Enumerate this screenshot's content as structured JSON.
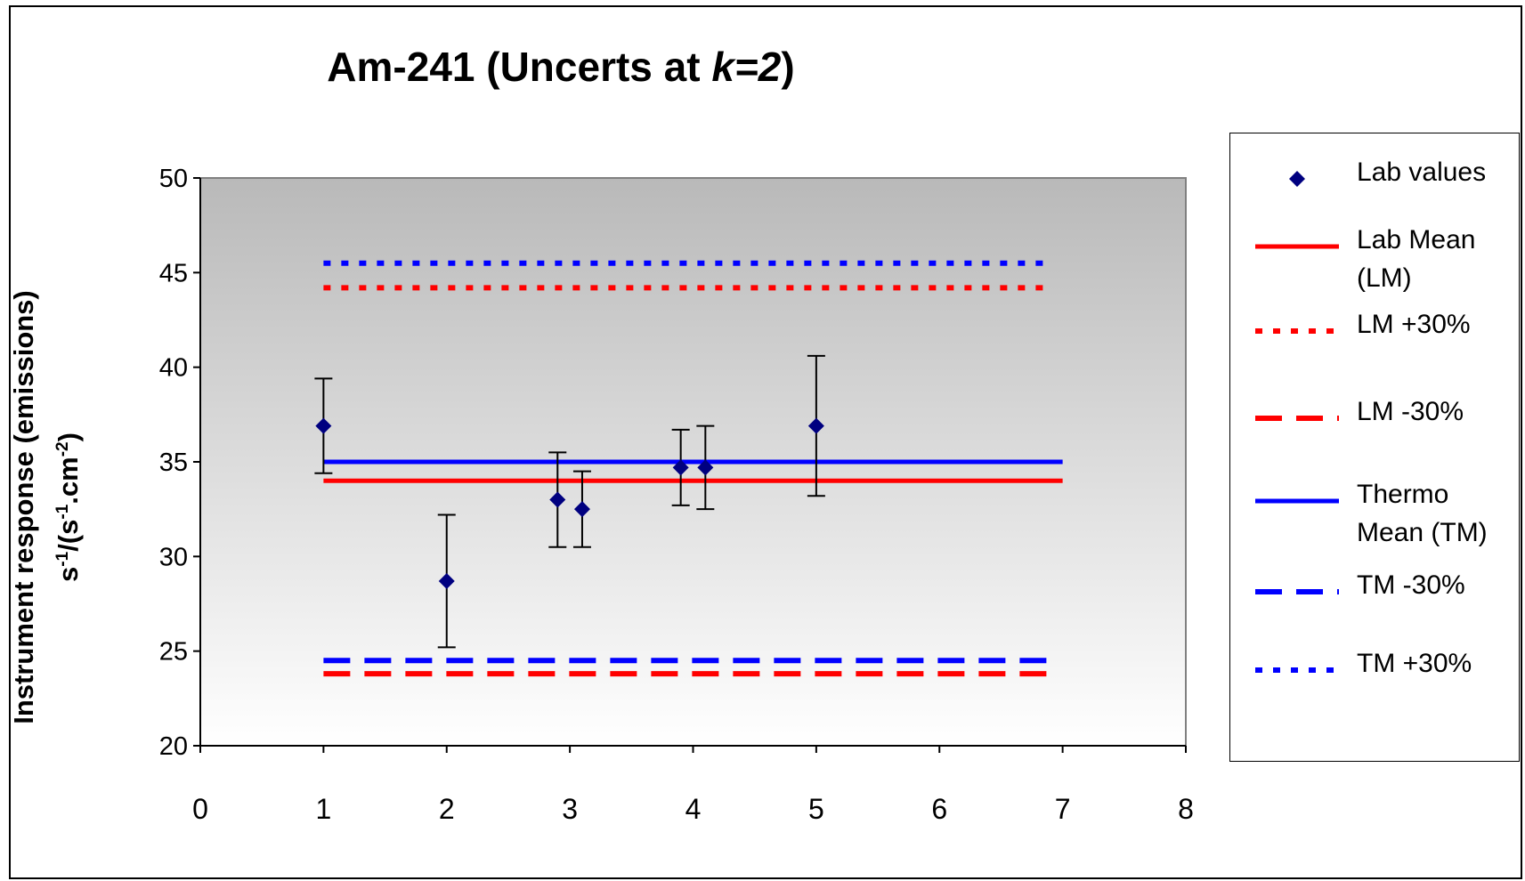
{
  "chart_data": {
    "type": "scatter",
    "title": "Am-241   (Uncerts at k=2)",
    "title_parts": {
      "main": "Am-241   (Uncerts at ",
      "italic": "k=2",
      "close": ")"
    },
    "ylabel_line1": "Instrument response (emissions)",
    "ylabel_line2": {
      "s1": "s",
      "e1": "-1",
      "mid": "/(s",
      "e2": "-1",
      "dot": ".cm",
      "e3": "-2",
      "end": ")"
    },
    "xlabel": "",
    "xlim": [
      0,
      8
    ],
    "ylim": [
      20,
      50
    ],
    "xticks": [
      "0",
      "1",
      "2",
      "3",
      "4",
      "5",
      "6",
      "7",
      "8"
    ],
    "yticks": [
      "20",
      "25",
      "30",
      "35",
      "40",
      "45",
      "50"
    ],
    "grid": false,
    "legend_position": "right",
    "plot_background": "gradient grey (dark top to white bottom)",
    "series": [
      {
        "name": "Lab values",
        "kind": "points",
        "color": "#000080",
        "marker": "diamond",
        "points": [
          {
            "x": 1.0,
            "y": 36.9,
            "err": 2.5
          },
          {
            "x": 2.0,
            "y": 28.7,
            "err": 3.5
          },
          {
            "x": 2.9,
            "y": 33.0,
            "err": 2.5
          },
          {
            "x": 3.1,
            "y": 32.5,
            "err": 2.0
          },
          {
            "x": 3.9,
            "y": 34.7,
            "err": 2.0
          },
          {
            "x": 4.1,
            "y": 34.7,
            "err": 2.2
          },
          {
            "x": 5.0,
            "y": 36.9,
            "err": 3.7
          }
        ]
      },
      {
        "name": "Lab Mean (LM)",
        "kind": "line",
        "style": "solid",
        "color": "#ff0000",
        "x": [
          1,
          7
        ],
        "y": 34.0
      },
      {
        "name": "LM +30%",
        "kind": "line",
        "style": "dotted",
        "color": "#ff0000",
        "x": [
          1,
          7
        ],
        "y": 44.2
      },
      {
        "name": "LM -30%",
        "kind": "line",
        "style": "dashed",
        "color": "#ff0000",
        "x": [
          1,
          7
        ],
        "y": 23.8
      },
      {
        "name": "Thermo Mean (TM)",
        "kind": "line",
        "style": "solid",
        "color": "#0000ff",
        "x": [
          1,
          7
        ],
        "y": 35.0
      },
      {
        "name": "TM -30%",
        "kind": "line",
        "style": "dashed",
        "color": "#0000ff",
        "x": [
          1,
          7
        ],
        "y": 24.5
      },
      {
        "name": "TM +30%",
        "kind": "line",
        "style": "dotted",
        "color": "#0000ff",
        "x": [
          1,
          7
        ],
        "y": 45.5
      }
    ]
  },
  "legend": {
    "items": [
      {
        "label": "Lab values",
        "symbol": "diamond",
        "color": "#000080",
        "style": "marker"
      },
      {
        "label": "Lab Mean\n(LM)",
        "symbol": "line",
        "color": "#ff0000",
        "style": "solid"
      },
      {
        "label": "LM +30%",
        "symbol": "line",
        "color": "#ff0000",
        "style": "dotted"
      },
      {
        "label": "LM -30%",
        "symbol": "line",
        "color": "#ff0000",
        "style": "dashed"
      },
      {
        "label": "Thermo\nMean (TM)",
        "symbol": "line",
        "color": "#0000ff",
        "style": "solid"
      },
      {
        "label": "TM -30%",
        "symbol": "line",
        "color": "#0000ff",
        "style": "dashed"
      },
      {
        "label": "TM +30%",
        "symbol": "line",
        "color": "#0000ff",
        "style": "dotted"
      }
    ]
  }
}
